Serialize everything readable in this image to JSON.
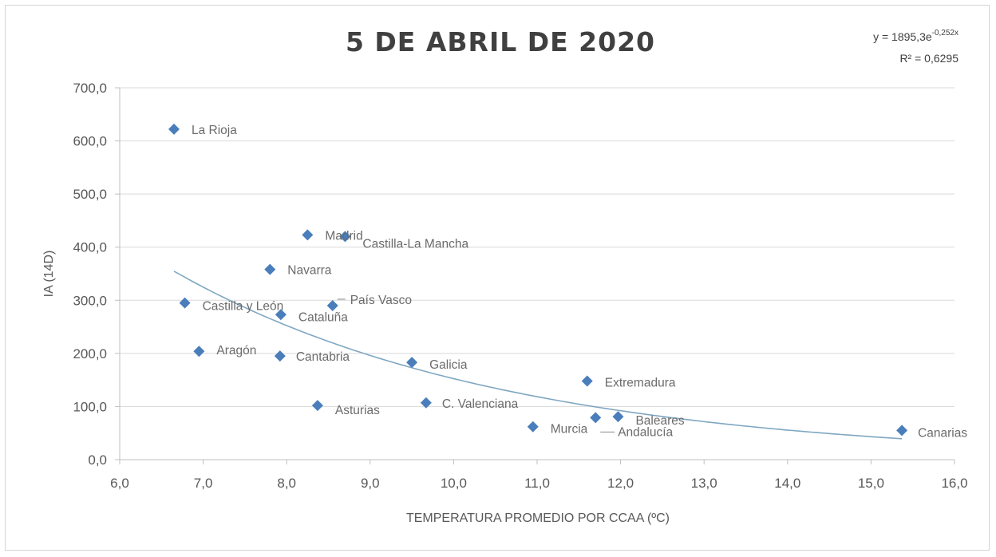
{
  "chart_data": {
    "type": "scatter",
    "title": "5 DE ABRIL DE 2020",
    "xlabel": "TEMPERATURA  PROMEDIO POR CCAA (ºC)",
    "ylabel": "IA (14D)",
    "xlim": [
      6.0,
      16.0
    ],
    "ylim": [
      0.0,
      700.0
    ],
    "x_ticks": [
      "6,0",
      "7,0",
      "8,0",
      "9,0",
      "10,0",
      "11,0",
      "12,0",
      "13,0",
      "14,0",
      "15,0",
      "16,0"
    ],
    "y_ticks": [
      "0,0",
      "100,0",
      "200,0",
      "300,0",
      "400,0",
      "500,0",
      "600,0",
      "700,0"
    ],
    "grid": "horizontal",
    "marker_color": "#4a7ebb",
    "trend_color": "#7fa7c2",
    "points": [
      {
        "label": "La Rioja",
        "x": 6.65,
        "y": 622
      },
      {
        "label": "Madrid",
        "x": 8.25,
        "y": 423
      },
      {
        "label": "Castilla-La Mancha",
        "x": 8.7,
        "y": 420
      },
      {
        "label": "Navarra",
        "x": 7.8,
        "y": 358
      },
      {
        "label": "Castilla y León",
        "x": 6.78,
        "y": 295
      },
      {
        "label": "País Vasco",
        "x": 8.55,
        "y": 290
      },
      {
        "label": "Cataluña",
        "x": 7.93,
        "y": 273
      },
      {
        "label": "Aragón",
        "x": 6.95,
        "y": 204
      },
      {
        "label": "Cantabria",
        "x": 7.92,
        "y": 195
      },
      {
        "label": "Galicia",
        "x": 9.5,
        "y": 183
      },
      {
        "label": "Extremadura",
        "x": 11.6,
        "y": 148
      },
      {
        "label": "C. Valenciana",
        "x": 9.67,
        "y": 107
      },
      {
        "label": "Asturias",
        "x": 8.37,
        "y": 102
      },
      {
        "label": "Baleares",
        "x": 11.97,
        "y": 81
      },
      {
        "label": "Andalucía",
        "x": 11.7,
        "y": 79
      },
      {
        "label": "Murcia",
        "x": 10.95,
        "y": 62
      },
      {
        "label": "Canarias",
        "x": 15.37,
        "y": 55
      }
    ],
    "trendline": {
      "type": "exponential",
      "a": 1895.3,
      "b": -0.252,
      "x_range": [
        6.65,
        15.37
      ],
      "equation_text": "y = 1895,3e",
      "equation_exponent": "-0,252x",
      "r2_text": "R² = 0,6295"
    }
  }
}
